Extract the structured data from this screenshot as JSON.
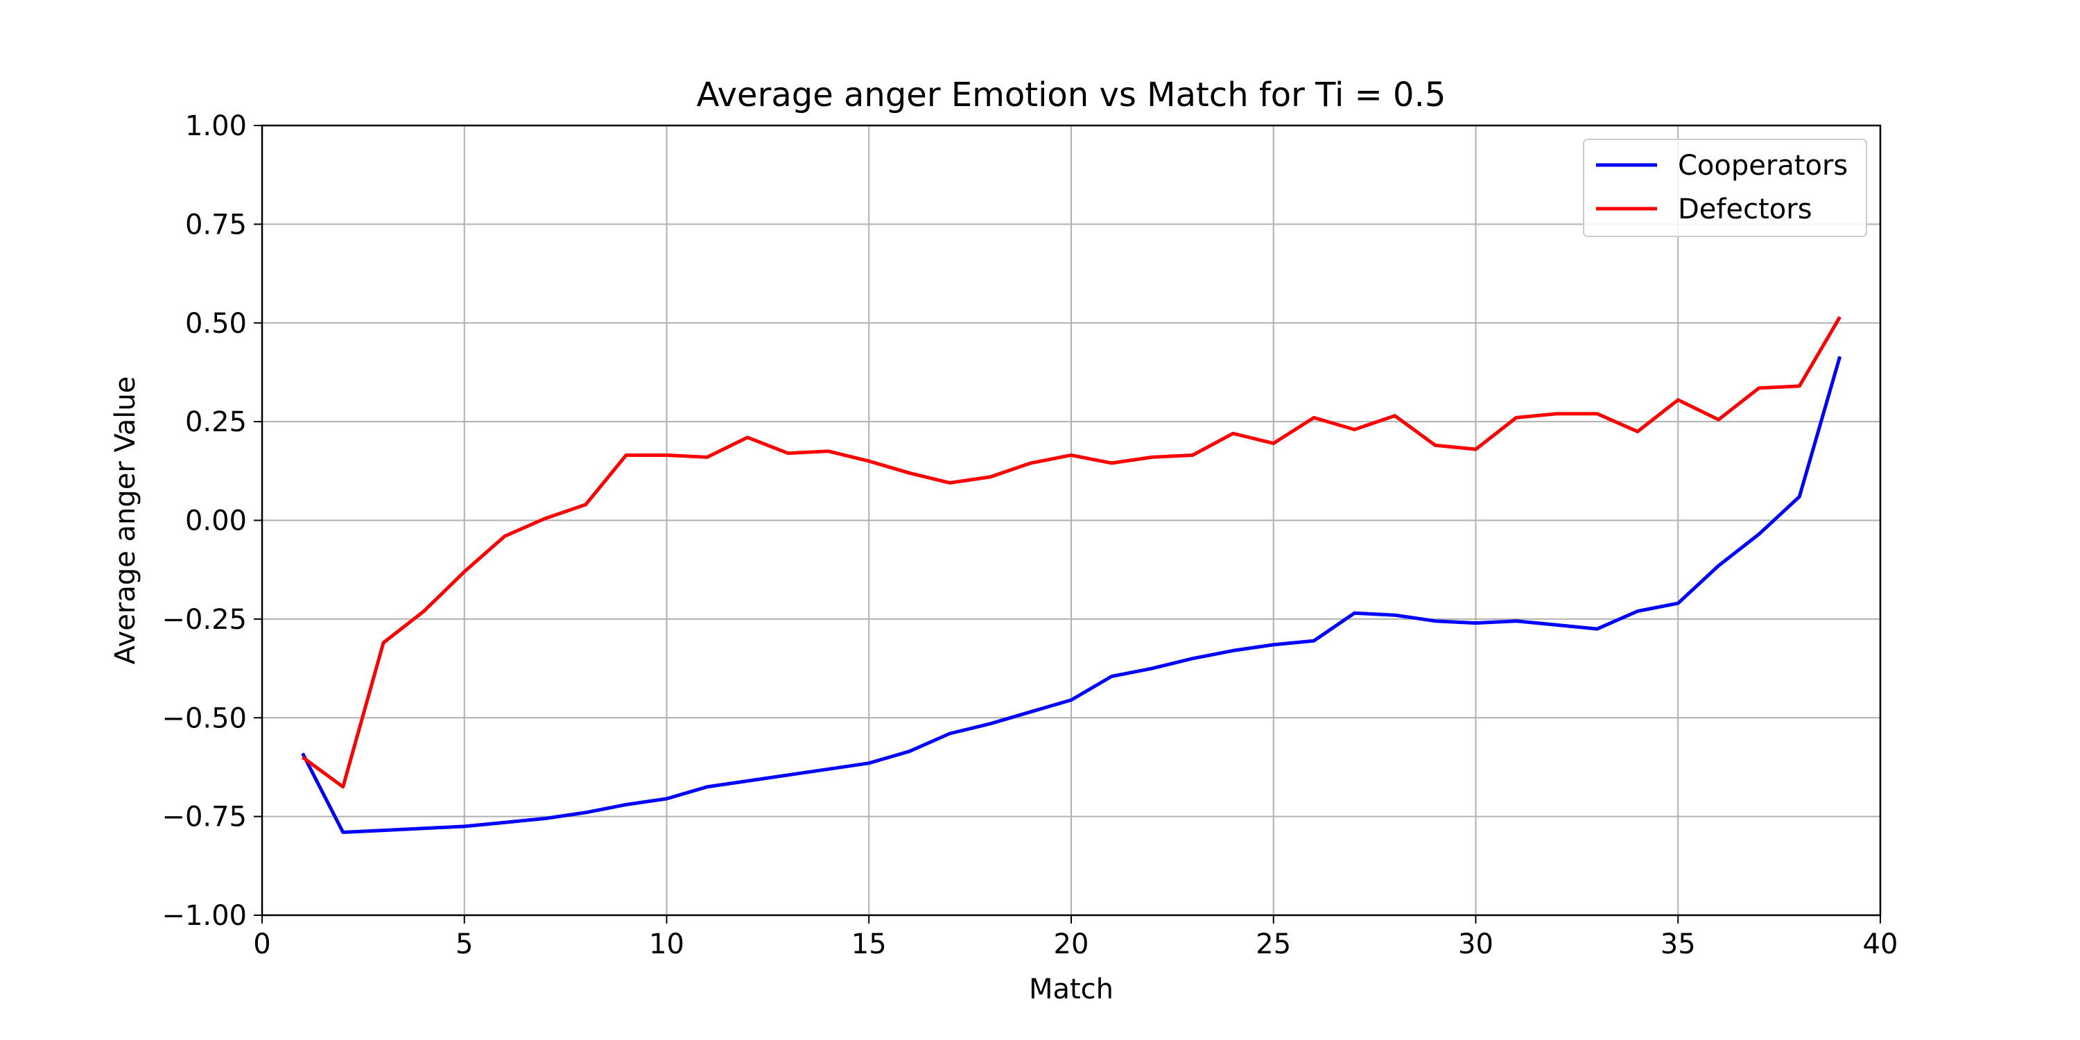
{
  "chart_data": {
    "type": "line",
    "title": "Average anger Emotion vs Match for Ti = 0.5",
    "xlabel": "Match",
    "ylabel": "Average anger Value",
    "xlim": [
      0,
      40
    ],
    "ylim": [
      -1.0,
      1.0
    ],
    "xticks": [
      0,
      5,
      10,
      15,
      20,
      25,
      30,
      35,
      40
    ],
    "xtick_labels": [
      "0",
      "5",
      "10",
      "15",
      "20",
      "25",
      "30",
      "35",
      "40"
    ],
    "yticks": [
      -1.0,
      -0.75,
      -0.5,
      -0.25,
      0.0,
      0.25,
      0.5,
      0.75,
      1.0
    ],
    "ytick_labels": [
      "−1.00",
      "−0.75",
      "−0.50",
      "−0.25",
      "0.00",
      "0.25",
      "0.50",
      "0.75",
      "1.00"
    ],
    "grid": true,
    "legend_position": "top-right",
    "x": [
      1,
      2,
      3,
      4,
      5,
      6,
      7,
      8,
      9,
      10,
      11,
      12,
      13,
      14,
      15,
      16,
      17,
      18,
      19,
      20,
      21,
      22,
      23,
      24,
      25,
      26,
      27,
      28,
      29,
      30,
      31,
      32,
      33,
      34,
      35,
      36,
      37,
      38,
      39
    ],
    "series": [
      {
        "name": "Cooperators",
        "color": "#0000ff",
        "values": [
          -0.59,
          -0.79,
          -0.785,
          -0.78,
          -0.775,
          -0.765,
          -0.755,
          -0.74,
          -0.72,
          -0.705,
          -0.675,
          -0.66,
          -0.645,
          -0.63,
          -0.615,
          -0.585,
          -0.54,
          -0.515,
          -0.485,
          -0.455,
          -0.395,
          -0.375,
          -0.35,
          -0.33,
          -0.315,
          -0.305,
          -0.235,
          -0.24,
          -0.255,
          -0.26,
          -0.255,
          -0.265,
          -0.275,
          -0.23,
          -0.21,
          -0.115,
          -0.035,
          0.06,
          0.415
        ]
      },
      {
        "name": "Defectors",
        "color": "#ff0000",
        "values": [
          -0.6,
          -0.675,
          -0.31,
          -0.23,
          -0.13,
          -0.04,
          0.005,
          0.04,
          0.165,
          0.165,
          0.16,
          0.21,
          0.17,
          0.175,
          0.15,
          0.12,
          0.095,
          0.11,
          0.145,
          0.165,
          0.145,
          0.16,
          0.165,
          0.22,
          0.195,
          0.26,
          0.23,
          0.265,
          0.19,
          0.18,
          0.26,
          0.27,
          0.27,
          0.225,
          0.305,
          0.255,
          0.335,
          0.34,
          0.515
        ]
      }
    ]
  }
}
